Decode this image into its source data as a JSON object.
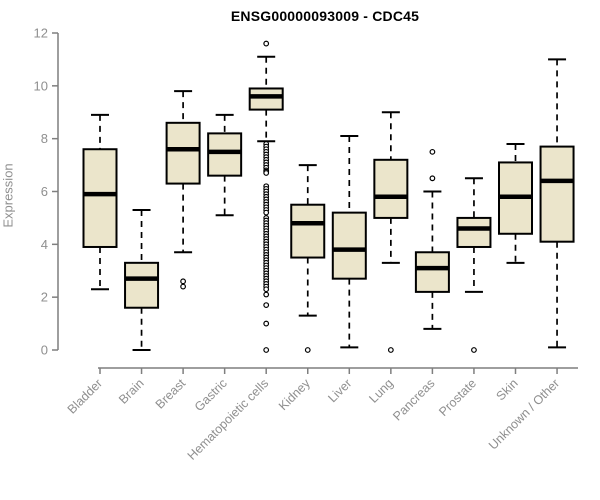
{
  "title": "ENSG00000093009 - CDC45",
  "chart_data": {
    "type": "boxplot",
    "title": "ENSG00000093009 - CDC45",
    "xlabel": "",
    "ylabel": "Expression",
    "ylim": [
      0,
      12
    ],
    "yticks": [
      "0",
      "2",
      "4",
      "6",
      "8",
      "10",
      "12"
    ],
    "grid": false,
    "legend": "none",
    "categories": [
      "Bladder",
      "Brain",
      "Breast",
      "Gastric",
      "Hematopoietic cells",
      "Kidney",
      "Liver",
      "Lung",
      "Pancreas",
      "Prostate",
      "Skin",
      "Unknown / Other"
    ],
    "series": [
      {
        "name": "Bladder",
        "low": 2.3,
        "q1": 3.9,
        "median": 5.9,
        "q3": 7.6,
        "high": 8.9,
        "outliers": []
      },
      {
        "name": "Brain",
        "low": 0.0,
        "q1": 1.6,
        "median": 2.7,
        "q3": 3.3,
        "high": 5.3,
        "outliers": []
      },
      {
        "name": "Breast",
        "low": 3.7,
        "q1": 6.3,
        "median": 7.6,
        "q3": 8.6,
        "high": 9.8,
        "outliers": [
          2.6,
          2.4
        ]
      },
      {
        "name": "Gastric",
        "low": 5.1,
        "q1": 6.6,
        "median": 7.5,
        "q3": 8.2,
        "high": 8.9,
        "outliers": []
      },
      {
        "name": "Hematopoietic cells",
        "low": 7.9,
        "q1": 9.1,
        "median": 9.6,
        "q3": 9.9,
        "high": 11.1,
        "outliers": [
          11.6,
          7.8,
          7.7,
          7.6,
          7.5,
          7.4,
          7.3,
          7.2,
          7.1,
          7.0,
          6.9,
          6.8,
          6.75,
          6.7,
          6.2,
          6.1,
          6.0,
          5.9,
          5.8,
          5.7,
          5.6,
          5.5,
          5.4,
          5.3,
          5.2,
          5.0,
          4.9,
          4.8,
          4.7,
          4.6,
          4.5,
          4.4,
          4.3,
          4.2,
          4.1,
          4.0,
          3.9,
          3.8,
          3.7,
          3.6,
          3.5,
          3.4,
          3.3,
          3.2,
          3.1,
          3.0,
          2.9,
          2.8,
          2.7,
          2.6,
          2.5,
          2.4,
          2.3,
          2.1,
          1.7,
          1.0,
          0.0
        ]
      },
      {
        "name": "Kidney",
        "low": 1.3,
        "q1": 3.5,
        "median": 4.8,
        "q3": 5.5,
        "high": 7.0,
        "outliers": [
          0.0
        ]
      },
      {
        "name": "Liver",
        "low": 0.1,
        "q1": 2.7,
        "median": 3.8,
        "q3": 5.2,
        "high": 8.1,
        "outliers": []
      },
      {
        "name": "Lung",
        "low": 3.3,
        "q1": 5.0,
        "median": 5.8,
        "q3": 7.2,
        "high": 9.0,
        "outliers": [
          0.0
        ]
      },
      {
        "name": "Pancreas",
        "low": 0.8,
        "q1": 2.2,
        "median": 3.1,
        "q3": 3.7,
        "high": 6.0,
        "outliers": [
          7.5,
          6.5
        ]
      },
      {
        "name": "Prostate",
        "low": 2.2,
        "q1": 3.9,
        "median": 4.6,
        "q3": 5.0,
        "high": 6.5,
        "outliers": [
          0.0
        ]
      },
      {
        "name": "Skin",
        "low": 3.3,
        "q1": 4.4,
        "median": 5.8,
        "q3": 7.1,
        "high": 7.8,
        "outliers": []
      },
      {
        "name": "Unknown / Other",
        "low": 0.1,
        "q1": 4.1,
        "median": 6.4,
        "q3": 7.7,
        "high": 11.0,
        "outliers": []
      }
    ],
    "colors": {
      "box_fill": "#ebe5cb",
      "box_border": "#000000",
      "median": "#000000",
      "whisker": "#000000",
      "axis": "#7f7f7f",
      "tick_label": "#8f8f8f",
      "title": "#000000",
      "background": "#ffffff"
    }
  }
}
